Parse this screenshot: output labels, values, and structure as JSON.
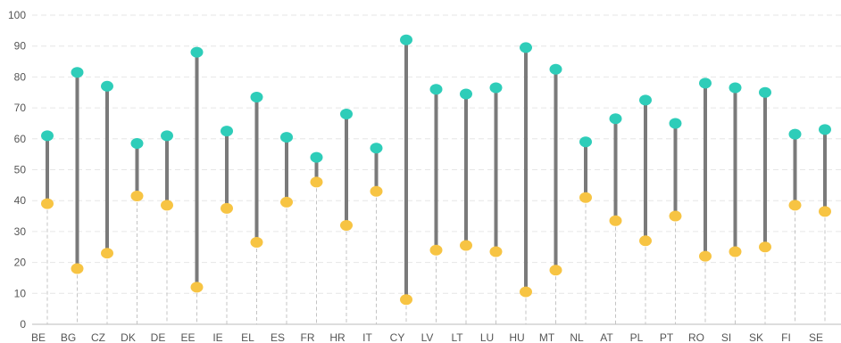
{
  "chart_data": {
    "type": "dumbbell",
    "title": "",
    "xlabel": "",
    "ylabel": "",
    "ylim": [
      0,
      100
    ],
    "yticks": [
      0,
      10,
      20,
      30,
      40,
      50,
      60,
      70,
      80,
      90,
      100
    ],
    "grid": true,
    "legend": "none",
    "categories": [
      "BE",
      "BG",
      "CZ",
      "DK",
      "DE",
      "EE",
      "IE",
      "EL",
      "ES",
      "FR",
      "HR",
      "IT",
      "CY",
      "LV",
      "LT",
      "LU",
      "HU",
      "MT",
      "NL",
      "AT",
      "PL",
      "PT",
      "RO",
      "SI",
      "SK",
      "FI",
      "SE"
    ],
    "series": [
      {
        "color": "#2ecdb9",
        "values": [
          61,
          81.5,
          77,
          58.5,
          61,
          88,
          62.5,
          73.5,
          60.5,
          54,
          68,
          57,
          92,
          76,
          74.5,
          76.5,
          89.5,
          82.5,
          59,
          66.5,
          72.5,
          65,
          78,
          76.5,
          75,
          61.5,
          63
        ]
      },
      {
        "color": "#f7c443",
        "values": [
          39,
          18,
          23,
          41.5,
          38.5,
          12,
          37.5,
          26.5,
          39.5,
          46,
          32,
          43,
          8,
          24,
          25.5,
          23.5,
          10.5,
          17.5,
          41,
          33.5,
          27,
          35,
          22,
          23.5,
          25,
          38.5,
          36.5
        ]
      }
    ]
  }
}
